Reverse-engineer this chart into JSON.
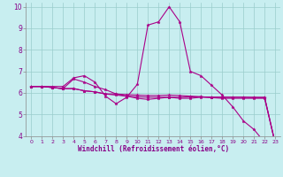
{
  "xlabel": "Windchill (Refroidissement éolien,°C)",
  "bg_color": "#c8eef0",
  "line_color": "#aa0088",
  "grid_color": "#99cccc",
  "xlim": [
    -0.5,
    23.5
  ],
  "ylim": [
    4,
    10.2
  ],
  "yticks": [
    4,
    5,
    6,
    7,
    8,
    9,
    10
  ],
  "xticks": [
    0,
    1,
    2,
    3,
    4,
    5,
    6,
    7,
    8,
    9,
    10,
    11,
    12,
    13,
    14,
    15,
    16,
    17,
    18,
    19,
    20,
    21,
    22,
    23
  ],
  "series": [
    {
      "x": [
        0,
        1,
        2,
        3,
        4,
        5,
        6,
        7,
        8,
        9,
        10,
        11,
        12,
        13,
        14,
        15,
        16,
        17,
        18,
        19,
        20,
        21,
        22,
        23
      ],
      "y": [
        6.3,
        6.3,
        6.3,
        6.3,
        6.7,
        6.8,
        6.5,
        5.85,
        5.5,
        5.8,
        6.4,
        9.15,
        9.3,
        10.0,
        9.3,
        7.0,
        6.8,
        6.35,
        5.9,
        5.35,
        4.7,
        4.3,
        3.7,
        3.7
      ]
    },
    {
      "x": [
        0,
        1,
        2,
        3,
        4,
        5,
        6,
        7,
        8,
        9,
        10,
        11,
        12,
        13,
        14,
        15,
        16,
        17,
        18,
        19,
        20,
        21,
        22,
        23
      ],
      "y": [
        6.3,
        6.3,
        6.25,
        6.2,
        6.65,
        6.5,
        6.3,
        6.15,
        5.95,
        5.85,
        5.75,
        5.7,
        5.75,
        5.8,
        5.75,
        5.75,
        5.8,
        5.8,
        5.8,
        5.8,
        5.8,
        5.8,
        5.8,
        3.65
      ]
    },
    {
      "x": [
        0,
        1,
        2,
        3,
        4,
        5,
        6,
        7,
        8,
        9,
        10,
        11,
        12,
        13,
        14,
        15,
        16,
        17,
        18,
        19,
        20,
        21,
        22,
        23
      ],
      "y": [
        6.3,
        6.3,
        6.25,
        6.2,
        6.2,
        6.1,
        6.05,
        5.95,
        5.9,
        5.85,
        5.82,
        5.8,
        5.8,
        5.8,
        5.8,
        5.82,
        5.82,
        5.78,
        5.75,
        5.75,
        5.75,
        5.75,
        5.75,
        3.65
      ]
    },
    {
      "x": [
        0,
        1,
        2,
        3,
        4,
        5,
        6,
        7,
        8,
        9,
        10,
        11,
        12,
        13,
        14,
        15,
        16,
        17,
        18,
        19,
        20,
        21,
        22,
        23
      ],
      "y": [
        6.3,
        6.3,
        6.25,
        6.2,
        6.2,
        6.1,
        6.05,
        5.95,
        5.95,
        5.92,
        5.9,
        5.88,
        5.88,
        5.9,
        5.88,
        5.85,
        5.82,
        5.8,
        5.8,
        5.8,
        5.8,
        5.78,
        5.78,
        3.65
      ]
    }
  ]
}
